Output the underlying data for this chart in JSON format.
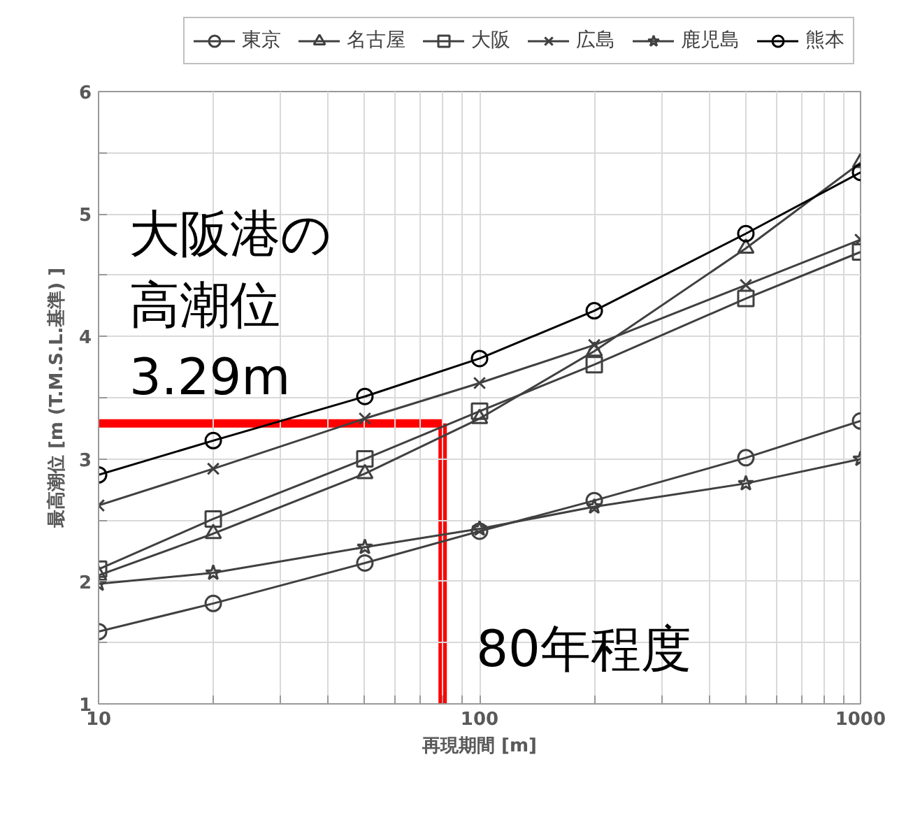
{
  "chart_data": {
    "type": "line",
    "xlabel": "再現期間 [m]",
    "ylabel": "最高潮位 [m (T.M.S.L.基準) ]",
    "x": [
      10,
      20,
      50,
      100,
      200,
      500,
      1000
    ],
    "xlim": [
      10,
      1000
    ],
    "ylim": [
      1,
      6
    ],
    "log": "x",
    "xticks": [
      10,
      {
        "value": 20,
        "label": null
      },
      {
        "value": 30,
        "label": null
      },
      {
        "value": 40,
        "label": null
      },
      {
        "value": 50,
        "label": null
      },
      {
        "value": 60,
        "label": null
      },
      {
        "value": 70,
        "label": null
      },
      {
        "value": 80,
        "label": null
      },
      {
        "value": 90,
        "label": null
      },
      100,
      {
        "value": 200,
        "label": null
      },
      {
        "value": 300,
        "label": null
      },
      {
        "value": 400,
        "label": null
      },
      {
        "value": 500,
        "label": null
      },
      {
        "value": 600,
        "label": null
      },
      {
        "value": 700,
        "label": null
      },
      {
        "value": 800,
        "label": null
      },
      {
        "value": 900,
        "label": null
      },
      1000
    ],
    "yticks": [
      1,
      {
        "value": 1.5,
        "label": null
      },
      2,
      {
        "value": 2.5,
        "label": null
      },
      3,
      {
        "value": 3.5,
        "label": null
      },
      4,
      {
        "value": 4.5,
        "label": null
      },
      5,
      {
        "value": 5.5,
        "label": null
      },
      6
    ],
    "grid": true,
    "legend": "top",
    "line_style": "solid",
    "series": [
      {
        "name": "東京",
        "color": "#404040",
        "marker": "circle",
        "values": [
          1.59,
          1.82,
          2.15,
          2.41,
          2.66,
          3.01,
          3.31
        ]
      },
      {
        "name": "名古屋",
        "color": "#404040",
        "marker": "triangle",
        "values": [
          2.05,
          2.39,
          2.88,
          3.33,
          3.88,
          4.72,
          5.42
        ]
      },
      {
        "name": "大阪",
        "color": "#404040",
        "marker": "square",
        "values": [
          2.1,
          2.51,
          3.0,
          3.39,
          3.77,
          4.31,
          4.69
        ]
      },
      {
        "name": "広島",
        "color": "#404040",
        "marker": "cross",
        "values": [
          2.62,
          2.92,
          3.33,
          3.62,
          3.93,
          4.42,
          4.79
        ]
      },
      {
        "name": "鹿児島",
        "color": "#404040",
        "marker": "star",
        "values": [
          1.98,
          2.07,
          2.28,
          2.43,
          2.61,
          2.8,
          3.0
        ]
      },
      {
        "name": "熊本",
        "color": "#000000",
        "marker": "circle",
        "values": [
          2.87,
          3.15,
          3.51,
          3.82,
          4.21,
          4.84,
          5.34
        ]
      }
    ],
    "ref_lines": [
      {
        "axis": "y",
        "value": 3.29,
        "label": "大阪港の高潮位3.29m",
        "color": "#ff0000"
      },
      {
        "axis": "x",
        "value": 80,
        "label": "80年程度",
        "color": "#ff0000"
      }
    ]
  }
}
